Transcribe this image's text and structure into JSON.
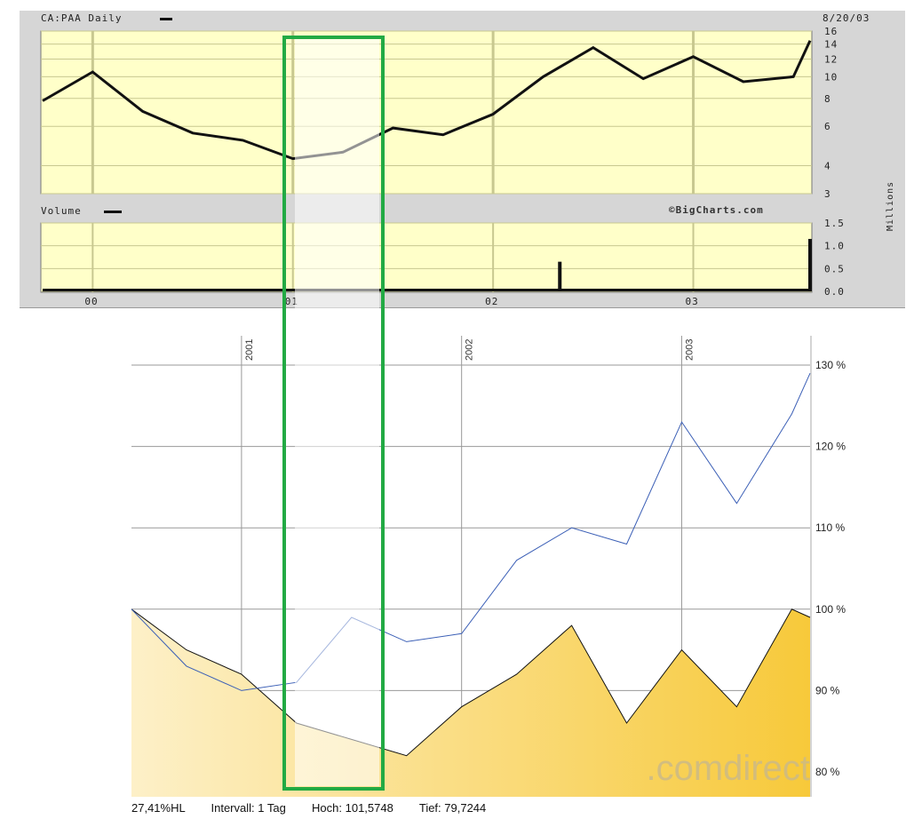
{
  "top_panel": {
    "symbol_label": "CA:PAA Daily",
    "date_label": "8/20/03",
    "volume_label": "Volume",
    "watermark": "©BigCharts.com",
    "units_label": "Millions",
    "price_ticks": [
      "16",
      "14",
      "12",
      "10",
      "8",
      "6",
      "4",
      "3"
    ],
    "volume_ticks": [
      "1.5",
      "1.0",
      "0.5",
      "0.0"
    ],
    "year_ticks": [
      "00",
      "01",
      "02",
      "03"
    ]
  },
  "bottom_panel": {
    "year_labels": [
      "2001",
      "2002",
      "2003"
    ],
    "pct_ticks": [
      "130 %",
      "120 %",
      "110 %",
      "100 %",
      "90 %",
      "80 %"
    ],
    "watermark": ".comdirect",
    "footer": {
      "range": "27,41%HL",
      "interval": "Intervall: 1 Tag",
      "high": "Hoch: 101,5748",
      "low": "Tief: 79,7244"
    }
  },
  "colors": {
    "price_bg": "#ffffc9",
    "area_fill": "#f7c93a",
    "area_light": "#fdf0c8",
    "blue_line": "#3b5fb6",
    "highlight_box": "#22aa44"
  },
  "chart_data": [
    {
      "type": "line",
      "title": "CA:PAA Daily",
      "x": [
        "1999-10",
        "2000-01",
        "2000-04",
        "2000-07",
        "2000-10",
        "2001-01",
        "2001-04",
        "2001-07",
        "2001-10",
        "2002-01",
        "2002-04",
        "2002-07",
        "2002-10",
        "2003-01",
        "2003-04",
        "2003-07",
        "2003-08"
      ],
      "series": [
        {
          "name": "",
          "values": [
            7.8,
            10.5,
            7.0,
            5.6,
            5.2,
            4.3,
            4.6,
            5.9,
            5.5,
            6.8,
            10.0,
            13.5,
            9.8,
            12.3,
            9.5,
            10.0,
            14.5
          ]
        }
      ],
      "ylim": [
        3,
        16
      ],
      "yscale": "log"
    },
    {
      "type": "bar",
      "title": "Volume",
      "ylabel": "Millions",
      "ylim": [
        0,
        1.5
      ],
      "notable_values": [
        {
          "x": "2002-05",
          "value": 0.65
        },
        {
          "x": "2003-08",
          "value": 1.15
        }
      ]
    },
    {
      "type": "area",
      "x": [
        "2000-07",
        "2000-10",
        "2001-01",
        "2001-04",
        "2001-07",
        "2001-10",
        "2002-01",
        "2002-04",
        "2002-07",
        "2002-10",
        "2003-01",
        "2003-04",
        "2003-07",
        "2003-08"
      ],
      "series": [
        {
          "name": "",
          "values": [
            100,
            95,
            92,
            86,
            84,
            82,
            88,
            92,
            98,
            86,
            95,
            88,
            100,
            99
          ]
        },
        {
          "name": "",
          "values": [
            100,
            93,
            90,
            91,
            99,
            96,
            97,
            106,
            110,
            108,
            123,
            113,
            124,
            129
          ]
        }
      ],
      "ylim": [
        78,
        132
      ]
    }
  ]
}
